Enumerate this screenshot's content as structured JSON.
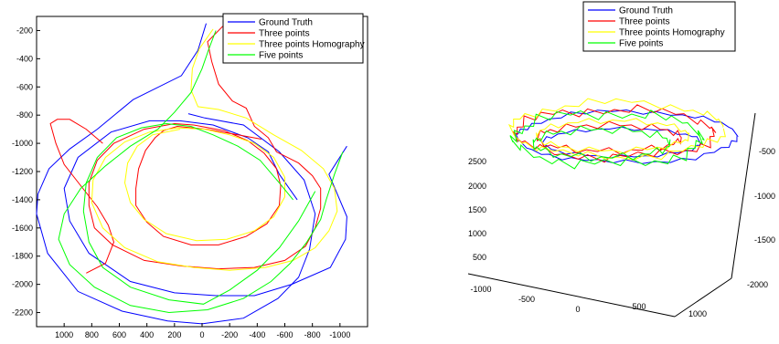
{
  "chart_data": [
    {
      "type": "line",
      "view": "2d",
      "xlim": [
        1200,
        -1200
      ],
      "ylim": [
        -2300,
        -100
      ],
      "x_ticks": [
        "1000",
        "800",
        "600",
        "400",
        "200",
        "0",
        "-200",
        "-400",
        "-600",
        "-800",
        "-1000"
      ],
      "y_ticks": [
        "-200",
        "-400",
        "-600",
        "-800",
        "-1000",
        "-1200",
        "-1400",
        "-1600",
        "-1800",
        "-2000",
        "-2200"
      ],
      "legend": {
        "placement": "top-right",
        "entries": [
          "Ground Truth",
          "Three points",
          "Three points Homography",
          "Five points"
        ]
      },
      "series": [
        {
          "name": "Ground Truth",
          "color": "#0000ff",
          "points": [
            [
              -30,
              -150
            ],
            [
              30,
              -340
            ],
            [
              150,
              -520
            ],
            [
              500,
              -690
            ],
            [
              760,
              -900
            ],
            [
              960,
              -1040
            ],
            [
              1110,
              -1180
            ],
            [
              1190,
              -1360
            ],
            [
              1200,
              -1500
            ],
            [
              1120,
              -1780
            ],
            [
              900,
              -2050
            ],
            [
              580,
              -2190
            ],
            [
              250,
              -2260
            ],
            [
              0,
              -2280
            ],
            [
              -300,
              -2240
            ],
            [
              -550,
              -2100
            ],
            [
              -700,
              -1950
            ],
            [
              -780,
              -1750
            ],
            [
              -820,
              -1500
            ],
            [
              -740,
              -1260
            ],
            [
              -560,
              -1060
            ],
            [
              -300,
              -870
            ],
            [
              -20,
              -820
            ],
            [
              100,
              -790
            ]
          ]
        },
        {
          "name": "Ground Truth",
          "color": "#0000ff",
          "points": [
            [
              -1050,
              -1020
            ],
            [
              -920,
              -1220
            ],
            [
              -1050,
              -1520
            ],
            [
              -1040,
              -1680
            ],
            [
              -930,
              -1880
            ],
            [
              -650,
              -2000
            ],
            [
              -380,
              -2080
            ],
            [
              -100,
              -2080
            ],
            [
              200,
              -2060
            ],
            [
              520,
              -1980
            ],
            [
              820,
              -1780
            ],
            [
              960,
              -1550
            ],
            [
              1000,
              -1320
            ],
            [
              900,
              -1100
            ],
            [
              660,
              -920
            ],
            [
              380,
              -840
            ],
            [
              160,
              -840
            ],
            [
              -80,
              -870
            ],
            [
              -330,
              -960
            ],
            [
              -480,
              -1060
            ],
            [
              -560,
              -1220
            ],
            [
              -690,
              -1400
            ]
          ]
        },
        {
          "name": "Three points",
          "color": "#ff0000",
          "points": [
            [
              -150,
              -170
            ],
            [
              -40,
              -280
            ],
            [
              -70,
              -420
            ],
            [
              -120,
              -580
            ],
            [
              -220,
              -700
            ],
            [
              -320,
              -750
            ],
            [
              -380,
              -880
            ],
            [
              -480,
              -960
            ],
            [
              -540,
              -1060
            ],
            [
              -700,
              -1140
            ],
            [
              -800,
              -1230
            ],
            [
              -860,
              -1320
            ],
            [
              -860,
              -1460
            ],
            [
              -820,
              -1600
            ],
            [
              -750,
              -1730
            ],
            [
              -600,
              -1830
            ],
            [
              -380,
              -1880
            ],
            [
              -120,
              -1890
            ],
            [
              150,
              -1870
            ],
            [
              420,
              -1830
            ],
            [
              650,
              -1720
            ],
            [
              780,
              -1600
            ],
            [
              820,
              -1440
            ],
            [
              820,
              -1280
            ],
            [
              760,
              -1120
            ],
            [
              640,
              -1000
            ],
            [
              420,
              -900
            ],
            [
              200,
              -860
            ],
            [
              60,
              -870
            ],
            [
              -160,
              -910
            ],
            [
              -330,
              -980
            ],
            [
              -450,
              -1070
            ],
            [
              -540,
              -1180
            ],
            [
              -570,
              -1300
            ],
            [
              -560,
              -1440
            ],
            [
              -470,
              -1570
            ],
            [
              -320,
              -1660
            ],
            [
              -120,
              -1720
            ],
            [
              80,
              -1720
            ],
            [
              280,
              -1660
            ],
            [
              400,
              -1560
            ],
            [
              480,
              -1440
            ],
            [
              480,
              -1320
            ],
            [
              460,
              -1180
            ],
            [
              410,
              -1050
            ],
            [
              340,
              -960
            ],
            [
              280,
              -910
            ],
            [
              180,
              -880
            ],
            [
              -30,
              -900
            ],
            [
              -260,
              -940
            ],
            [
              -430,
              -970
            ]
          ]
        },
        {
          "name": "Three points",
          "color": "#ff0000",
          "points": [
            [
              720,
              -1000
            ],
            [
              840,
              -900
            ],
            [
              960,
              -830
            ],
            [
              1050,
              -830
            ],
            [
              1100,
              -860
            ],
            [
              1060,
              -1000
            ],
            [
              1000,
              -1150
            ],
            [
              880,
              -1300
            ],
            [
              760,
              -1450
            ],
            [
              680,
              -1580
            ],
            [
              640,
              -1700
            ],
            [
              700,
              -1850
            ],
            [
              840,
              -1920
            ]
          ]
        },
        {
          "name": "Three points Homography",
          "color": "#ffff00",
          "points": [
            [
              -80,
              -190
            ],
            [
              20,
              -330
            ],
            [
              70,
              -470
            ],
            [
              80,
              -620
            ],
            [
              30,
              -740
            ],
            [
              -120,
              -760
            ],
            [
              -320,
              -820
            ],
            [
              -520,
              -940
            ],
            [
              -720,
              -1050
            ],
            [
              -880,
              -1180
            ],
            [
              -960,
              -1320
            ],
            [
              -980,
              -1480
            ],
            [
              -920,
              -1620
            ],
            [
              -820,
              -1740
            ],
            [
              -660,
              -1830
            ],
            [
              -460,
              -1880
            ],
            [
              -200,
              -1900
            ],
            [
              60,
              -1880
            ],
            [
              320,
              -1840
            ],
            [
              560,
              -1740
            ],
            [
              720,
              -1600
            ],
            [
              800,
              -1420
            ],
            [
              790,
              -1260
            ],
            [
              700,
              -1100
            ],
            [
              560,
              -990
            ],
            [
              380,
              -920
            ],
            [
              180,
              -890
            ],
            [
              -20,
              -900
            ]
          ]
        },
        {
          "name": "Three points Homography",
          "color": "#ffff00",
          "points": [
            [
              -20,
              -900
            ],
            [
              -200,
              -940
            ],
            [
              -380,
              -1000
            ],
            [
              -520,
              -1100
            ],
            [
              -600,
              -1240
            ],
            [
              -600,
              -1380
            ],
            [
              -520,
              -1520
            ],
            [
              -380,
              -1620
            ],
            [
              -180,
              -1680
            ],
            [
              40,
              -1690
            ],
            [
              260,
              -1640
            ],
            [
              420,
              -1540
            ],
            [
              520,
              -1420
            ],
            [
              560,
              -1280
            ],
            [
              540,
              -1140
            ],
            [
              470,
              -1020
            ],
            [
              360,
              -940
            ],
            [
              160,
              -900
            ]
          ]
        },
        {
          "name": "Five points",
          "color": "#00ff00",
          "points": [
            [
              -100,
              -200
            ],
            [
              -50,
              -330
            ],
            [
              0,
              -470
            ],
            [
              80,
              -640
            ],
            [
              200,
              -780
            ],
            [
              320,
              -900
            ],
            [
              520,
              -1020
            ],
            [
              700,
              -1160
            ],
            [
              880,
              -1320
            ],
            [
              1000,
              -1500
            ],
            [
              1040,
              -1680
            ],
            [
              960,
              -1860
            ],
            [
              780,
              -2020
            ],
            [
              520,
              -2150
            ],
            [
              240,
              -2200
            ],
            [
              -40,
              -2180
            ],
            [
              -300,
              -2100
            ],
            [
              -500,
              -1980
            ],
            [
              -640,
              -1850
            ],
            [
              -760,
              -1700
            ],
            [
              -860,
              -1540
            ],
            [
              -900,
              -1400
            ],
            [
              -960,
              -1220
            ],
            [
              -1020,
              -1060
            ]
          ]
        },
        {
          "name": "Five points",
          "color": "#00ff00",
          "points": [
            [
              -820,
              -1340
            ],
            [
              -700,
              -1550
            ],
            [
              -560,
              -1740
            ],
            [
              -400,
              -1900
            ],
            [
              -200,
              -2040
            ],
            [
              -10,
              -2140
            ],
            [
              240,
              -2110
            ],
            [
              520,
              -2020
            ],
            [
              720,
              -1880
            ],
            [
              820,
              -1700
            ],
            [
              860,
              -1480
            ],
            [
              840,
              -1280
            ],
            [
              760,
              -1100
            ],
            [
              620,
              -960
            ],
            [
              440,
              -890
            ],
            [
              260,
              -860
            ],
            [
              80,
              -880
            ],
            [
              -80,
              -940
            ],
            [
              -260,
              -1020
            ],
            [
              -420,
              -1120
            ],
            [
              -560,
              -1280
            ],
            [
              -660,
              -1400
            ]
          ]
        }
      ]
    },
    {
      "type": "line",
      "view": "3d",
      "x_ticks": [
        "-1000",
        "-500",
        "0",
        "500",
        "1000"
      ],
      "y_ticks": [
        "-500",
        "-1000",
        "-1500",
        "-2000"
      ],
      "z_ticks": [
        "500",
        "1000",
        "1500",
        "2000",
        "2500"
      ],
      "legend": {
        "placement": "top",
        "entries": [
          "Ground Truth",
          "Three points",
          "Three points Homography",
          "Five points"
        ]
      },
      "series": [
        {
          "name": "Ground Truth",
          "color": "#0000ff",
          "points": []
        },
        {
          "name": "Three points",
          "color": "#ff0000",
          "points": []
        },
        {
          "name": "Three points Homography",
          "color": "#ffff00",
          "points": []
        },
        {
          "name": "Five points",
          "color": "#00ff00",
          "points": []
        }
      ]
    }
  ]
}
